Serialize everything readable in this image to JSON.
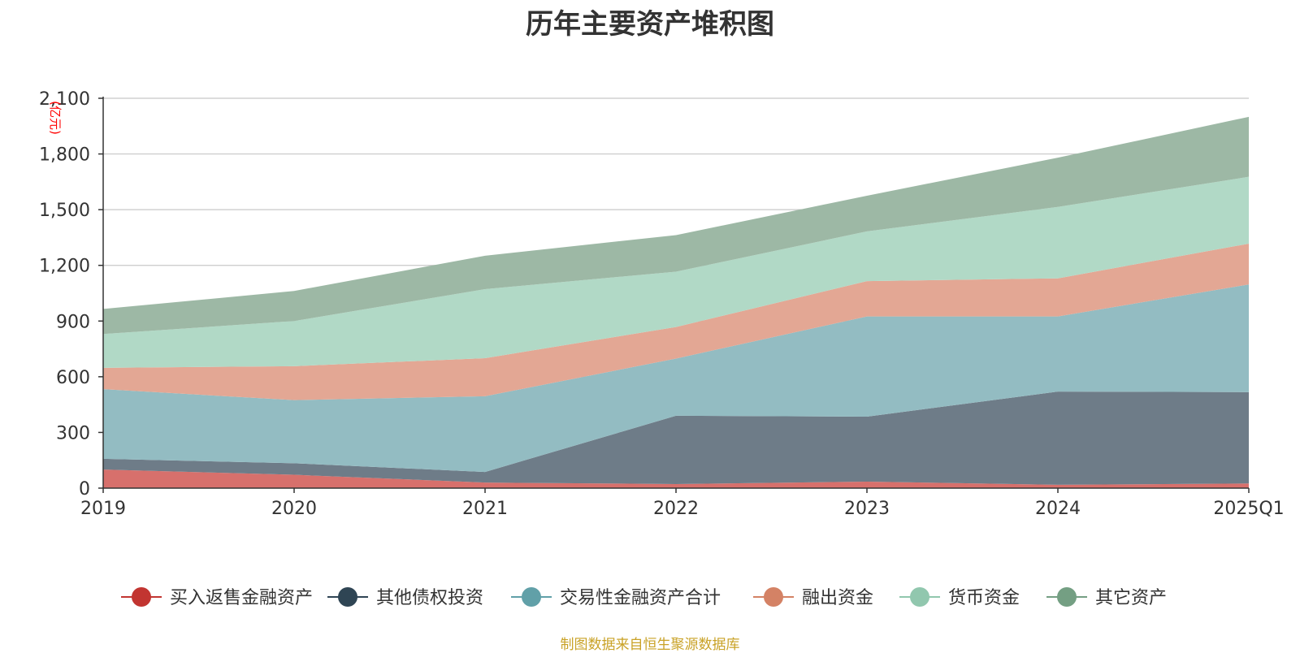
{
  "chart_data": {
    "type": "area",
    "title": "历年主要资产堆积图",
    "y_unit_label": "(亿元)",
    "categories": [
      "2019",
      "2020",
      "2021",
      "2022",
      "2023",
      "2024",
      "2025Q1"
    ],
    "ylim": [
      0,
      2100
    ],
    "yticks": [
      0,
      300,
      600,
      900,
      1200,
      1500,
      1800,
      2100
    ],
    "ytick_labels": [
      "0",
      "300",
      "600",
      "900",
      "1,200",
      "1,500",
      "1,800",
      "2,100"
    ],
    "grid": true,
    "legend_position": "bottom",
    "series": [
      {
        "name": "买入返售金融资产",
        "color": "#c23531",
        "fill": "#d7706c",
        "values": [
          100,
          72,
          30,
          22,
          35,
          18,
          25
        ]
      },
      {
        "name": "其他债权投资",
        "color": "#2f4554",
        "fill": "#6e7c88",
        "values": [
          58,
          62,
          57,
          368,
          350,
          502,
          492
        ]
      },
      {
        "name": "交易性金融资产合计",
        "color": "#61a0a8",
        "fill": "#93bcc2",
        "values": [
          375,
          340,
          408,
          308,
          540,
          405,
          580
        ]
      },
      {
        "name": "融出资金",
        "color": "#d48265",
        "fill": "#e3a794",
        "values": [
          115,
          183,
          205,
          170,
          190,
          205,
          220
        ]
      },
      {
        "name": "货币资金",
        "color": "#91c7ae",
        "fill": "#b1d9c6",
        "values": [
          182,
          243,
          372,
          298,
          268,
          385,
          360
        ]
      },
      {
        "name": "其它资产",
        "color": "#749f83",
        "fill": "#9db8a5",
        "values": [
          135,
          162,
          180,
          197,
          192,
          265,
          323
        ]
      }
    ]
  },
  "source_note": "制图数据来自恒生聚源数据库"
}
